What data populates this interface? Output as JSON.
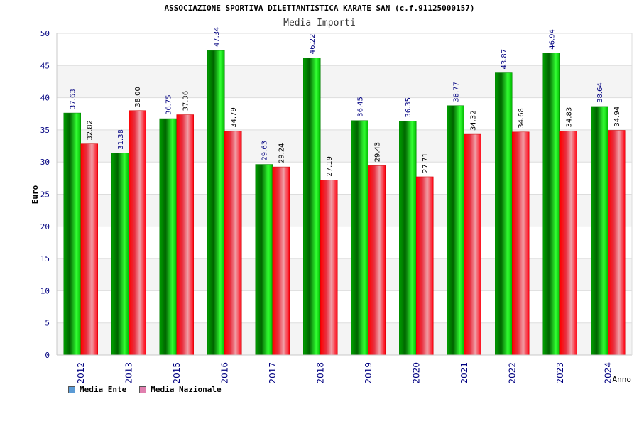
{
  "chart_data": {
    "type": "bar",
    "title": "ASSOCIAZIONE SPORTIVA DILETTANTISTICA KARATE SAN (c.f.91125000157)",
    "subtitle": "Media Importi",
    "xlabel": "Anno",
    "ylabel": "Euro",
    "ylim": [
      0,
      50
    ],
    "yticks": [
      0,
      5,
      10,
      15,
      20,
      25,
      30,
      35,
      40,
      45,
      50
    ],
    "grid": true,
    "legend_position": "bottom-left",
    "categories": [
      "2012",
      "2013",
      "2015",
      "2016",
      "2017",
      "2018",
      "2019",
      "2020",
      "2021",
      "2022",
      "2023",
      "2024"
    ],
    "series": [
      {
        "name": "Media Ente",
        "color": "#00c000",
        "legend_color": "#5b9bd5",
        "values": [
          37.63,
          31.38,
          36.75,
          47.34,
          29.63,
          46.22,
          36.45,
          36.35,
          38.77,
          43.87,
          46.94,
          38.64
        ],
        "labels": [
          "37.63",
          "31.38",
          "36.75",
          "47.34",
          "29.63",
          "46.22",
          "36.45",
          "36.35",
          "38.77",
          "43.87",
          "46.94",
          "38.64"
        ]
      },
      {
        "name": "Media Nazionale",
        "color": "#ff0000",
        "legend_color": "#e07fae",
        "values": [
          32.82,
          38.0,
          37.36,
          34.79,
          29.24,
          27.19,
          29.43,
          27.71,
          34.32,
          34.68,
          34.83,
          34.94
        ],
        "labels": [
          "32.82",
          "38.00",
          "37.36",
          "34.79",
          "29.24",
          "27.19",
          "29.43",
          "27.71",
          "34.32",
          "34.68",
          "34.83",
          "34.94"
        ]
      }
    ]
  }
}
